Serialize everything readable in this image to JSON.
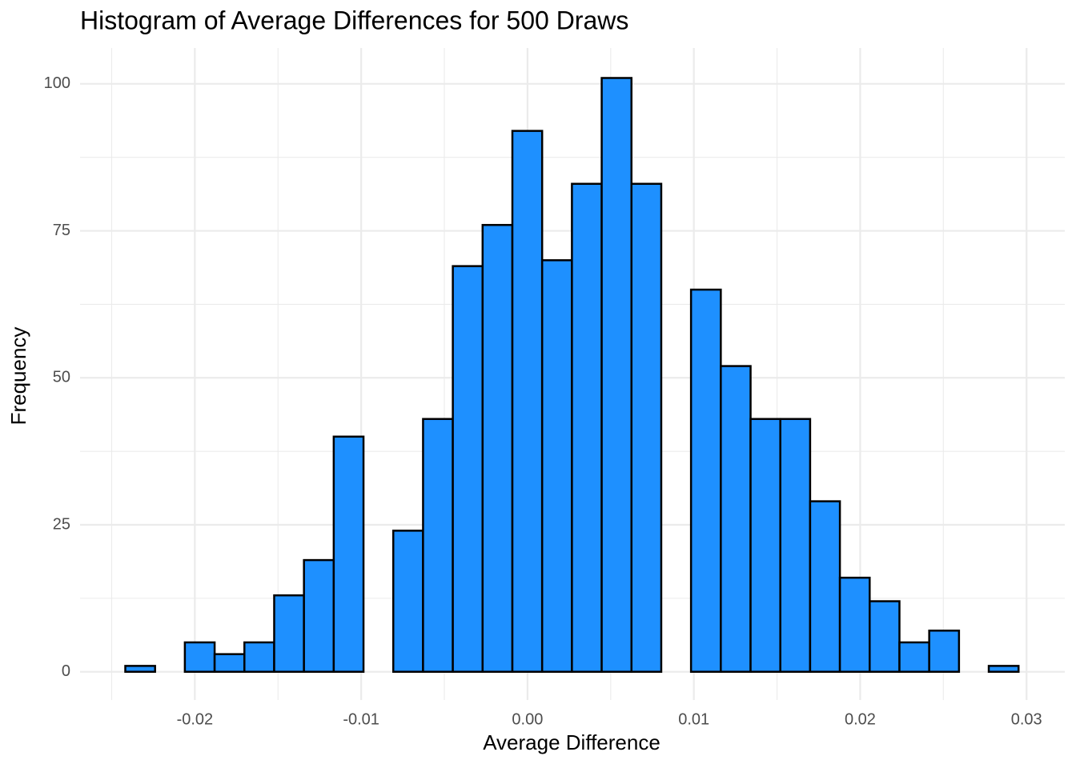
{
  "chart_data": {
    "type": "histogram",
    "title": "Histogram of Average Differences for 500 Draws",
    "x_label": "Average Difference",
    "y_label": "Frequency",
    "bins": [
      -0.02418,
      -0.02239,
      -0.0206,
      -0.01881,
      -0.01702,
      -0.01523,
      -0.01344,
      -0.01165,
      -0.00986,
      -0.00807,
      -0.00628,
      -0.00449,
      -0.0027,
      -0.00091,
      0.00088,
      0.00267,
      0.00446,
      0.00625,
      0.00804,
      0.00983,
      0.01162,
      0.01341,
      0.0152,
      0.01699,
      0.01878,
      0.02057,
      0.02236,
      0.02415,
      0.02594,
      0.02773,
      0.02952
    ],
    "values": [
      1,
      0,
      5,
      3,
      5,
      13,
      19,
      40,
      0,
      24,
      43,
      69,
      76,
      92,
      70,
      83,
      101,
      83,
      0,
      65,
      52,
      43,
      43,
      29,
      16,
      12,
      5,
      7,
      0,
      1
    ],
    "color": "#1e90ff",
    "edge_color": "#000000",
    "xlim": [
      -0.0269,
      0.0323
    ],
    "ylim": [
      -4.8,
      106.1
    ],
    "xticks": [
      -0.02,
      -0.01,
      {
        "value": 0,
        "label": "0.00"
      },
      0.01,
      0.02,
      0.03
    ],
    "yticks": [
      0,
      25,
      50,
      75,
      100
    ],
    "grid": true
  }
}
